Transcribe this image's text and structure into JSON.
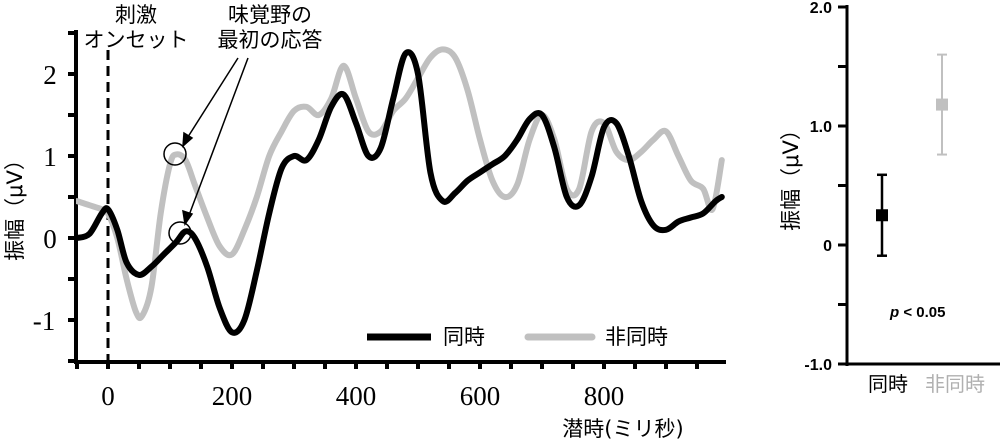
{
  "left_chart": {
    "annotations": {
      "onset_line1": "刺激",
      "onset_line2": "オンセット",
      "first_response_line1": "味覚野の",
      "first_response_line2": "最初の応答"
    },
    "ylabel": "振幅（μV）",
    "xlabel": "潜時(ミリ秒)",
    "yticks": [
      "2",
      "1",
      "0",
      "-1"
    ],
    "xticks": [
      "0",
      "200",
      "400",
      "600",
      "800"
    ],
    "legend": {
      "sync": "同時",
      "async": "非同時"
    }
  },
  "right_chart": {
    "ylabel": "振幅（μV）",
    "yticks": [
      "2.0",
      "1.0",
      "0",
      "-1.0"
    ],
    "categories": [
      "同時",
      "非同時"
    ],
    "stat_p": "p",
    "stat_rest": " < 0.05"
  },
  "colors": {
    "sync": "#000000",
    "async": "#c0c0c0"
  },
  "chart_data": [
    {
      "type": "line",
      "title": "",
      "xlabel": "潜時(ミリ秒)",
      "ylabel": "振幅（μV）",
      "xlim": [
        -50,
        990
      ],
      "ylim": [
        -1.5,
        2.5
      ],
      "x_ticks": [
        0,
        200,
        400,
        600,
        800
      ],
      "y_ticks": [
        -1,
        0,
        1,
        2
      ],
      "legend_position": "bottom-right",
      "grid": false,
      "vertical_marker": {
        "x": 0,
        "label": "刺激オンセット",
        "style": "dashed"
      },
      "markers": [
        {
          "series": "非同時",
          "x": 110,
          "y": 1.02,
          "label": "味覚野の最初の応答"
        },
        {
          "series": "同時",
          "x": 120,
          "y": 0.08,
          "label": "味覚野の最初の応答"
        }
      ],
      "series": [
        {
          "name": "同時",
          "color": "#000000",
          "x": [
            -50,
            -30,
            -10,
            0,
            15,
            30,
            50,
            70,
            90,
            110,
            125,
            140,
            160,
            180,
            200,
            220,
            240,
            260,
            280,
            300,
            320,
            340,
            360,
            380,
            400,
            420,
            440,
            460,
            480,
            500,
            520,
            540,
            560,
            580,
            600,
            620,
            640,
            660,
            680,
            700,
            720,
            740,
            760,
            780,
            800,
            820,
            840,
            860,
            880,
            900,
            920,
            940,
            960,
            980,
            990
          ],
          "y": [
            0.0,
            0.05,
            0.3,
            0.35,
            0.1,
            -0.3,
            -0.45,
            -0.35,
            -0.2,
            -0.05,
            0.08,
            0.0,
            -0.35,
            -0.85,
            -1.15,
            -1.0,
            -0.4,
            0.3,
            0.85,
            1.0,
            0.95,
            1.2,
            1.6,
            1.75,
            1.4,
            1.0,
            1.1,
            1.7,
            2.25,
            2.0,
            0.8,
            0.45,
            0.55,
            0.7,
            0.8,
            0.9,
            1.0,
            1.2,
            1.45,
            1.5,
            1.1,
            0.5,
            0.4,
            0.75,
            1.35,
            1.4,
            1.0,
            0.45,
            0.15,
            0.1,
            0.2,
            0.25,
            0.3,
            0.45,
            0.5
          ]
        },
        {
          "name": "非同時",
          "color": "#c0c0c0",
          "x": [
            -50,
            -30,
            -10,
            0,
            15,
            30,
            45,
            55,
            70,
            85,
            100,
            110,
            125,
            140,
            160,
            180,
            200,
            220,
            240,
            260,
            280,
            300,
            320,
            340,
            360,
            380,
            400,
            420,
            440,
            460,
            480,
            500,
            520,
            540,
            560,
            580,
            600,
            620,
            640,
            660,
            680,
            700,
            720,
            740,
            760,
            780,
            800,
            820,
            840,
            860,
            880,
            900,
            920,
            940,
            960,
            975,
            990
          ],
          "y": [
            0.45,
            0.4,
            0.35,
            0.3,
            0.0,
            -0.5,
            -0.9,
            -0.95,
            -0.6,
            0.3,
            0.9,
            1.02,
            0.95,
            0.65,
            0.25,
            -0.1,
            -0.2,
            0.1,
            0.5,
            1.0,
            1.3,
            1.55,
            1.6,
            1.5,
            1.7,
            2.1,
            1.7,
            1.3,
            1.3,
            1.55,
            1.7,
            1.95,
            2.2,
            2.3,
            2.2,
            1.8,
            1.2,
            0.7,
            0.5,
            0.65,
            1.2,
            1.5,
            1.2,
            0.6,
            0.6,
            1.3,
            1.4,
            1.05,
            0.95,
            1.05,
            1.2,
            1.3,
            1.0,
            0.7,
            0.6,
            0.35,
            0.95
          ]
        }
      ]
    },
    {
      "type": "scatter",
      "title": "",
      "xlabel": "",
      "ylabel": "振幅（μV）",
      "ylim": [
        -1.0,
        2.0
      ],
      "y_ticks": [
        -1.0,
        -0.5,
        0,
        0.5,
        1.0,
        1.5,
        2.0
      ],
      "y_tick_labels": [
        "-1.0",
        "0",
        "1.0",
        "2.0"
      ],
      "categories": [
        "同時",
        "非同時"
      ],
      "annotation": "p < 0.05",
      "series": [
        {
          "name": "同時",
          "color": "#000000",
          "mean": 0.25,
          "err_low": -0.09,
          "err_high": 0.59
        },
        {
          "name": "非同時",
          "color": "#c0c0c0",
          "mean": 1.18,
          "err_low": 0.76,
          "err_high": 1.6
        }
      ]
    }
  ]
}
